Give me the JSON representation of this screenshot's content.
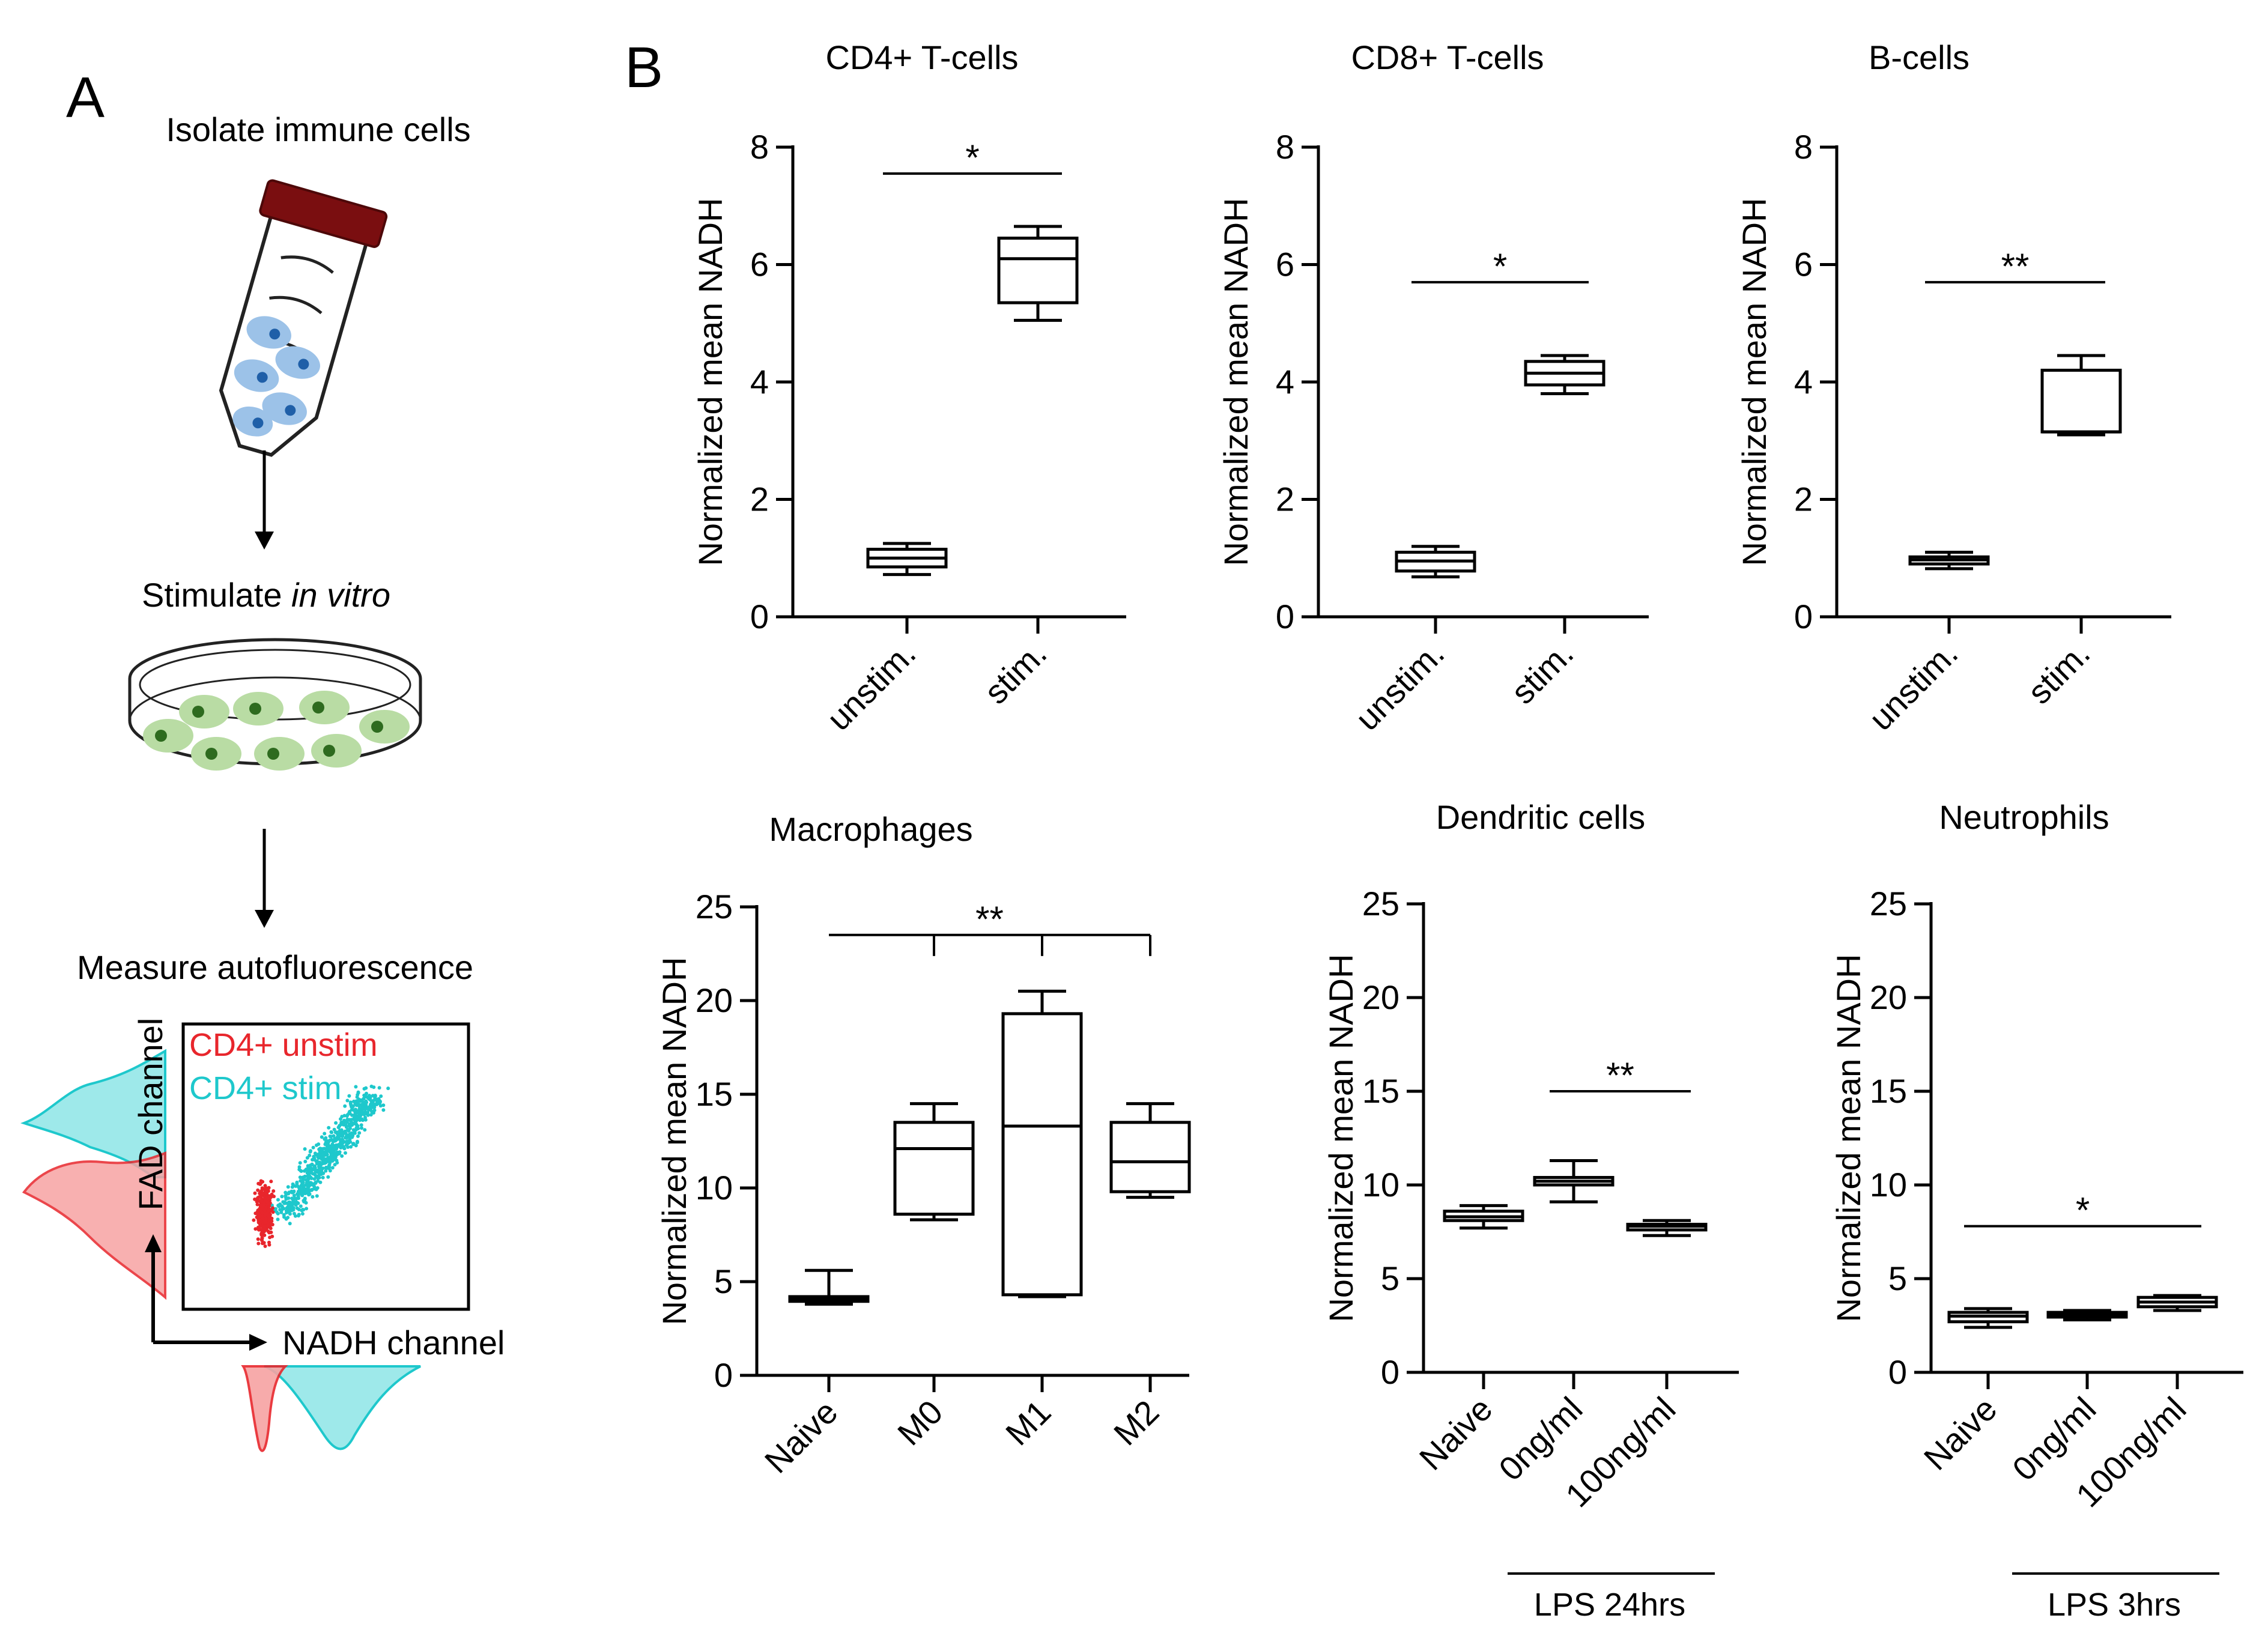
{
  "panel_a": {
    "label": "A",
    "step1": "Isolate immune cells",
    "step2_prefix": "Stimulate ",
    "step2_italic": "in vitro",
    "step3": "Measure autofluorescence",
    "legend_unstim": "CD4+ unstim",
    "legend_stim": "CD4+ stim",
    "x_channel": "NADH channel",
    "y_channel": "FAD channel",
    "colors": {
      "unstim": "#e8262c",
      "stim": "#1ec8cc",
      "cap": "#7a0e10",
      "cell_blue": "#9cc2e8",
      "cell_green": "#b9dca4"
    }
  },
  "panel_b": {
    "label": "B",
    "lps_24": "LPS 24hrs",
    "lps_3": "LPS 3hrs"
  },
  "chart_data": [
    {
      "type": "box",
      "title": "CD4+ T-cells",
      "ylabel": "Normalized mean NADH",
      "ylim": [
        0,
        8
      ],
      "yticks": [
        "0",
        "2",
        "4",
        "6",
        "8"
      ],
      "categories": [
        "unstim.",
        "stim."
      ],
      "boxes": [
        {
          "min": 0.72,
          "q1": 0.85,
          "median": 1.0,
          "q3": 1.15,
          "max": 1.25
        },
        {
          "min": 5.05,
          "q1": 5.35,
          "median": 6.1,
          "q3": 6.45,
          "max": 6.65
        }
      ],
      "significance": [
        {
          "from": 0,
          "to": 1,
          "label": "*",
          "y": 7.55
        }
      ]
    },
    {
      "type": "box",
      "title": "CD8+ T-cells",
      "ylabel": "Normalized mean NADH",
      "ylim": [
        0,
        8
      ],
      "yticks": [
        "0",
        "2",
        "4",
        "6",
        "8"
      ],
      "categories": [
        "unstim.",
        "stim."
      ],
      "boxes": [
        {
          "min": 0.68,
          "q1": 0.78,
          "median": 0.95,
          "q3": 1.1,
          "max": 1.2
        },
        {
          "min": 3.8,
          "q1": 3.95,
          "median": 4.15,
          "q3": 4.35,
          "max": 4.45
        }
      ],
      "significance": [
        {
          "from": 0,
          "to": 1,
          "label": "*",
          "y": 5.7
        }
      ]
    },
    {
      "type": "box",
      "title": "B-cells",
      "ylabel": "Normalized mean NADH",
      "ylim": [
        0,
        8
      ],
      "yticks": [
        "0",
        "2",
        "4",
        "6",
        "8"
      ],
      "categories": [
        "unstim.",
        "stim."
      ],
      "boxes": [
        {
          "min": 0.82,
          "q1": 0.9,
          "median": 0.97,
          "q3": 1.02,
          "max": 1.1
        },
        {
          "min": 3.1,
          "q1": 3.15,
          "median": 3.15,
          "q3": 4.2,
          "max": 4.45
        }
      ],
      "significance": [
        {
          "from": 0,
          "to": 1,
          "label": "**",
          "y": 5.7
        }
      ]
    },
    {
      "type": "box",
      "title": "Macrophages",
      "ylabel": "Normalized mean NADH",
      "ylim": [
        0,
        25
      ],
      "yticks": [
        "0",
        "5",
        "10",
        "15",
        "20",
        "25"
      ],
      "categories": [
        "Naive",
        "M0",
        "M1",
        "M2"
      ],
      "boxes": [
        {
          "min": 3.8,
          "q1": 3.95,
          "median": 4.1,
          "q3": 4.2,
          "max": 5.6
        },
        {
          "min": 8.3,
          "q1": 8.6,
          "median": 12.1,
          "q3": 13.5,
          "max": 14.5
        },
        {
          "min": 4.2,
          "q1": 4.3,
          "median": 13.3,
          "q3": 19.3,
          "max": 20.5
        },
        {
          "min": 9.5,
          "q1": 9.8,
          "median": 11.4,
          "q3": 13.5,
          "max": 14.5
        }
      ],
      "significance": [
        {
          "from": 0,
          "to": 3,
          "label": "**",
          "y": 23.5,
          "drops": [
            1,
            2,
            3
          ]
        }
      ]
    },
    {
      "type": "box",
      "title": "Dendritic cells",
      "ylabel": "Normalized mean NADH",
      "ylim": [
        0,
        25
      ],
      "yticks": [
        "0",
        "5",
        "10",
        "15",
        "20",
        "25"
      ],
      "categories": [
        "Naive",
        "0ng/ml",
        "100ng/ml"
      ],
      "boxes": [
        {
          "min": 7.7,
          "q1": 8.1,
          "median": 8.3,
          "q3": 8.6,
          "max": 8.9
        },
        {
          "min": 9.1,
          "q1": 10.0,
          "median": 10.2,
          "q3": 10.4,
          "max": 11.3
        },
        {
          "min": 7.3,
          "q1": 7.6,
          "median": 7.8,
          "q3": 7.9,
          "max": 8.1
        }
      ],
      "significance": [
        {
          "from": 1,
          "to": 2,
          "label": "**",
          "y": 15.0
        }
      ]
    },
    {
      "type": "box",
      "title": "Neutrophils",
      "ylabel": "Normalized mean NADH",
      "ylim": [
        0,
        25
      ],
      "yticks": [
        "0",
        "5",
        "10",
        "15",
        "20",
        "25"
      ],
      "categories": [
        "Naive",
        "0ng/ml",
        "100ng/ml"
      ],
      "boxes": [
        {
          "min": 2.4,
          "q1": 2.7,
          "median": 3.0,
          "q3": 3.2,
          "max": 3.4
        },
        {
          "min": 2.8,
          "q1": 2.95,
          "median": 3.1,
          "q3": 3.2,
          "max": 3.3
        },
        {
          "min": 3.3,
          "q1": 3.5,
          "median": 3.75,
          "q3": 4.0,
          "max": 4.1
        }
      ],
      "significance": [
        {
          "from": 0,
          "to": 2,
          "label": "*",
          "y": 7.8
        }
      ]
    }
  ]
}
